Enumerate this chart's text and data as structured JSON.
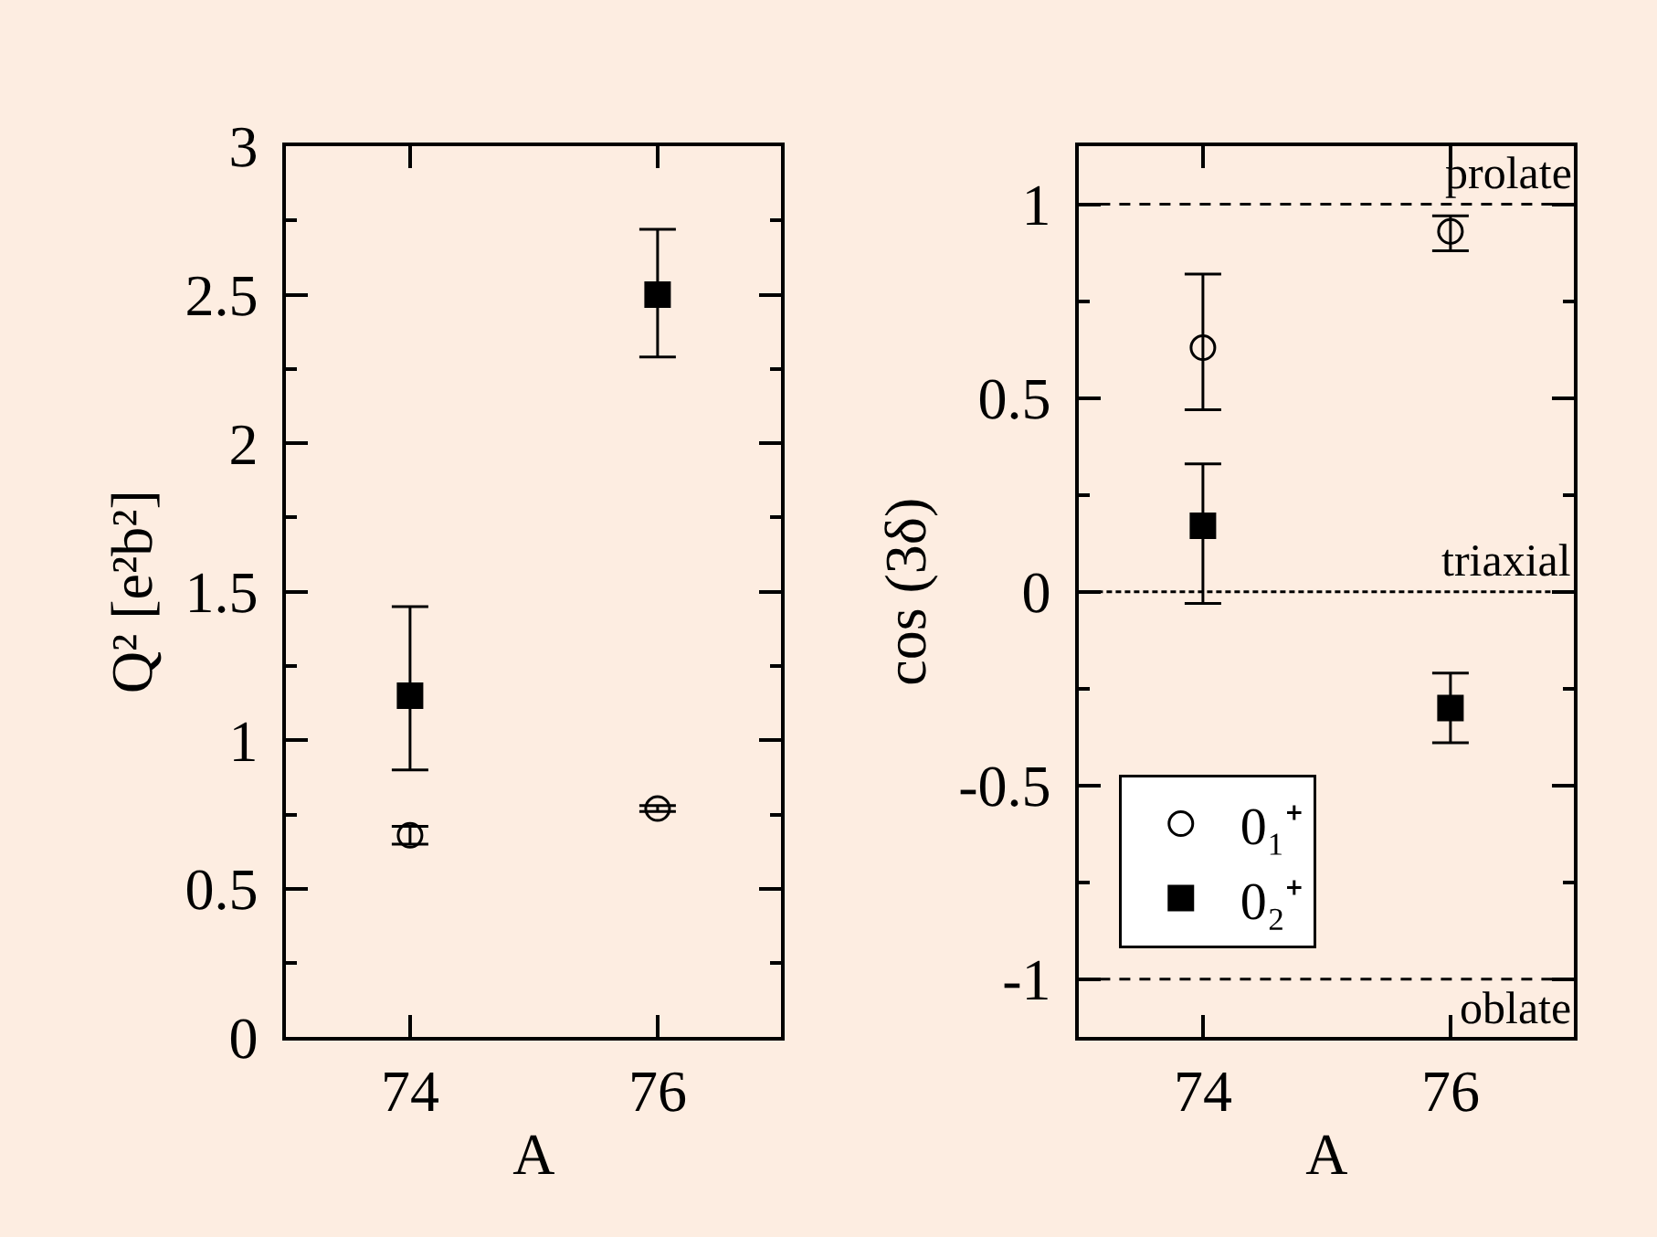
{
  "chart_data": [
    {
      "type": "scatter",
      "xlabel": "A",
      "ylabel": "Q² [e²b²]",
      "categories": [
        "74",
        "76"
      ],
      "ylim": [
        0,
        3
      ],
      "yticks": [
        0,
        {
          "value": 0.25,
          "label": null
        },
        0.5,
        {
          "value": 0.75,
          "label": null
        },
        1,
        {
          "value": 1.25,
          "label": null
        },
        1.5,
        {
          "value": 1.75,
          "label": null
        },
        2,
        {
          "value": 2.25,
          "label": null
        },
        2.5,
        {
          "value": 2.75,
          "label": null
        },
        3
      ],
      "legend": false,
      "series": [
        {
          "color": "#000000",
          "marker": "circle",
          "values": [
            0.68,
            0.77
          ],
          "errors": [
            0.03,
            0.01
          ]
        },
        {
          "color": "#000000",
          "marker": "square",
          "values": [
            1.15,
            2.5
          ],
          "errors": [
            [
              0.9,
              1.45
            ],
            [
              2.29,
              2.72
            ]
          ]
        }
      ]
    },
    {
      "type": "scatter",
      "xlabel": "A",
      "ylabel": "cos (3δ)",
      "categories": [
        "74",
        "76"
      ],
      "ylim": [
        -1.15,
        1.15
      ],
      "yticks": [
        -1,
        {
          "value": -0.75,
          "label": null
        },
        -0.5,
        {
          "value": -0.25,
          "label": null
        },
        0,
        {
          "value": 0.25,
          "label": null
        },
        0.5,
        {
          "value": 0.75,
          "label": null
        },
        1
      ],
      "legend": "bottom left",
      "ref_lines": [
        {
          "axis": "y",
          "value": 1,
          "label": "prolate",
          "line_style": "dashed"
        },
        {
          "axis": "y",
          "value": 0,
          "label": "triaxial",
          "line_style": "dotted"
        },
        {
          "axis": "y",
          "value": -1,
          "label": "oblate",
          "line_style": "dashed"
        }
      ],
      "series": [
        {
          "name": "0₁⁺",
          "color": "#000000",
          "marker": "circle",
          "values": [
            0.63,
            0.93
          ],
          "errors": [
            [
              0.47,
              0.82
            ],
            [
              0.88,
              0.97
            ]
          ]
        },
        {
          "name": "0₂⁺",
          "color": "#000000",
          "marker": "square",
          "values": [
            0.17,
            -0.3
          ],
          "errors": [
            [
              -0.03,
              0.33
            ],
            [
              -0.39,
              -0.21
            ]
          ]
        }
      ]
    }
  ]
}
